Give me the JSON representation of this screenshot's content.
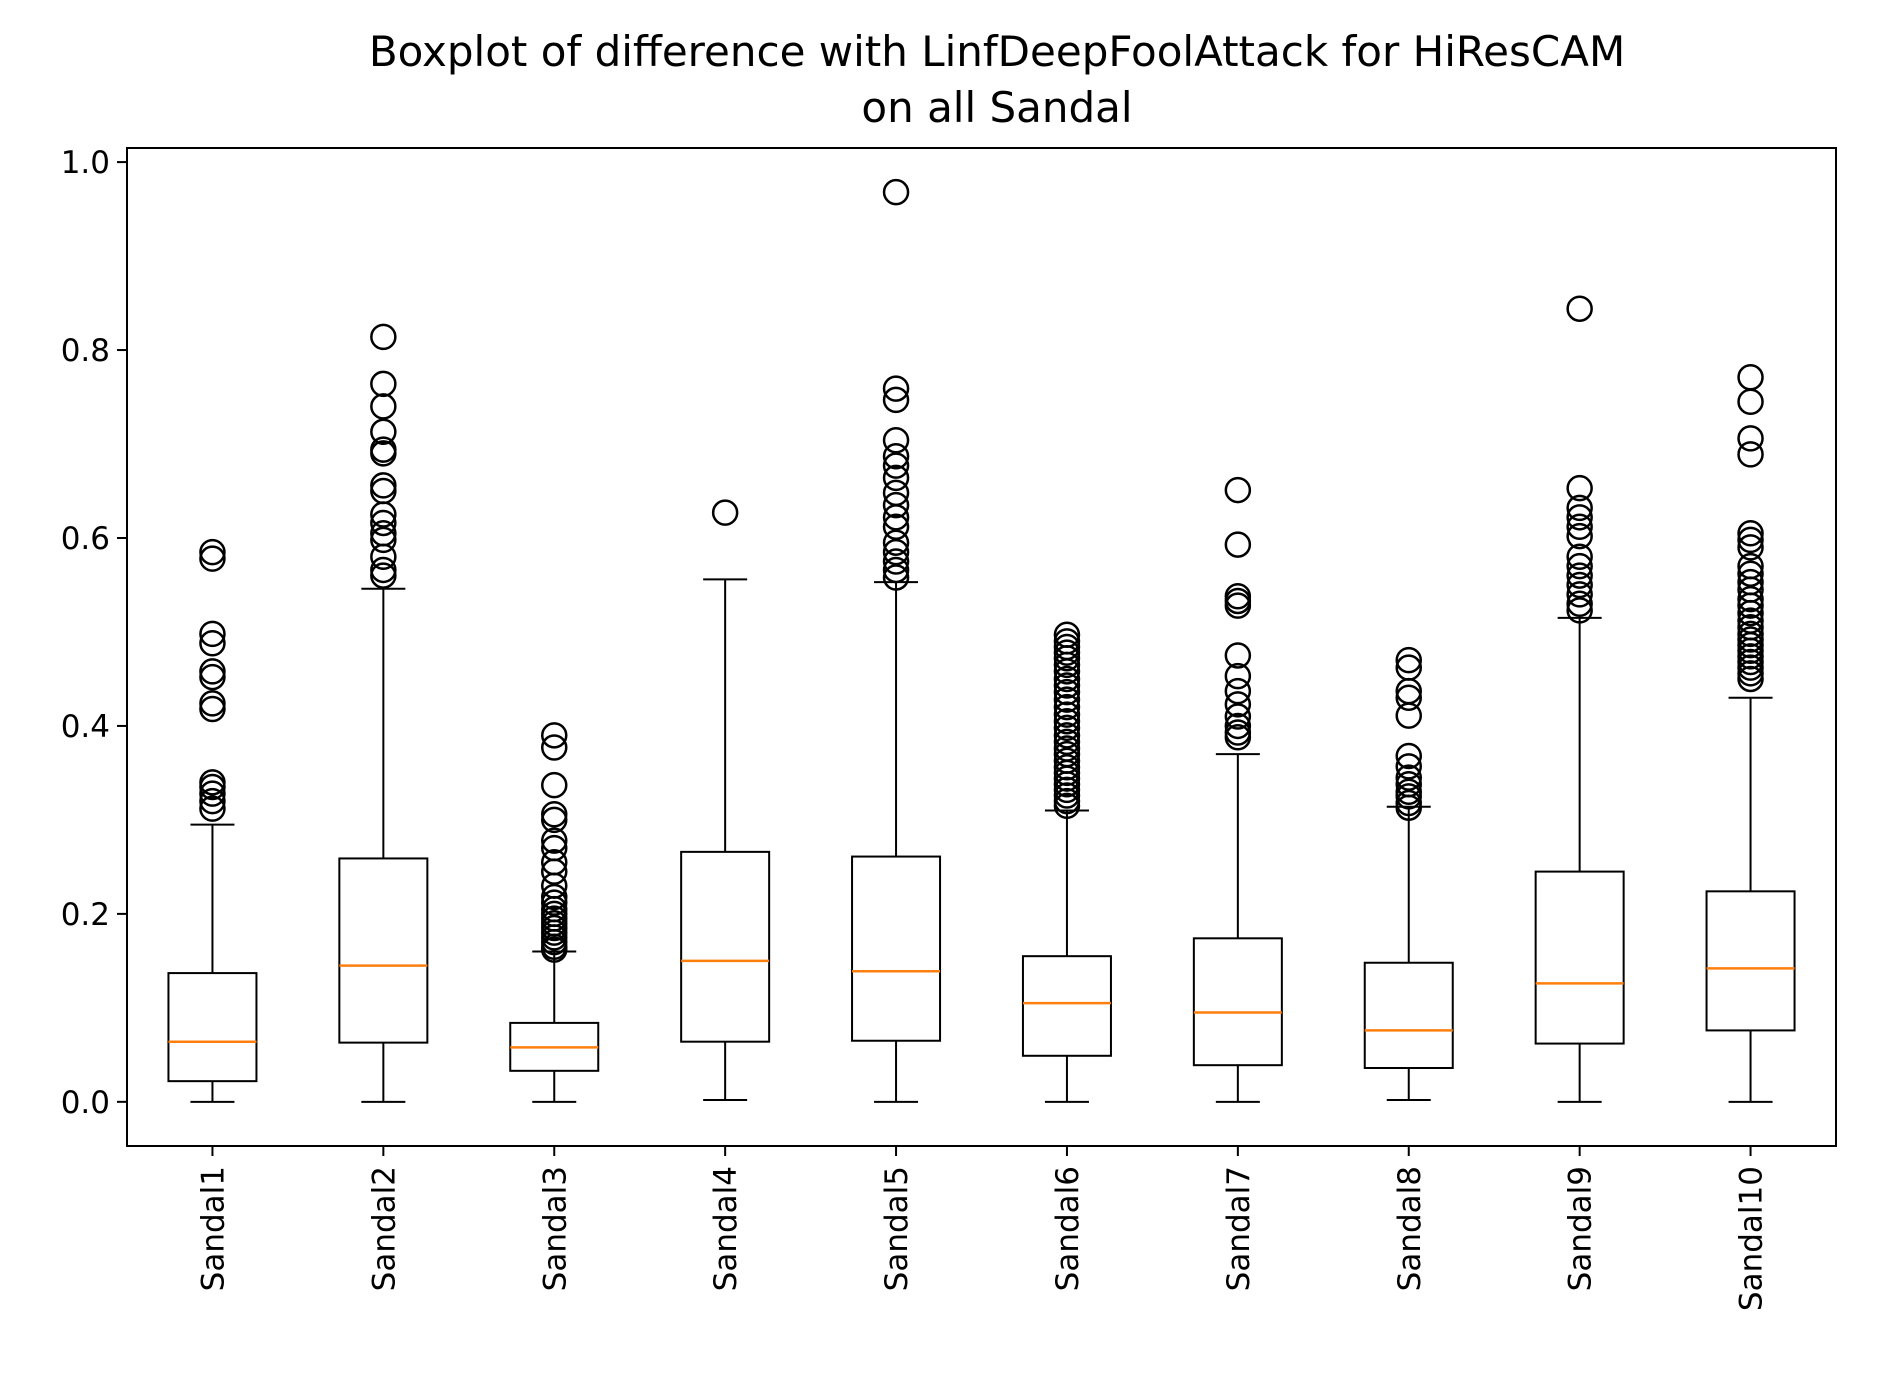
{
  "chart_data": {
    "type": "boxplot",
    "title": "Boxplot of difference with LinfDeepFoolAttack for HiResCAM",
    "subtitle": "on all Sandal",
    "xlabel": "",
    "ylabel": "",
    "ylim": [
      -0.047,
      1.015
    ],
    "yticks": [
      0.0,
      0.2,
      0.4,
      0.6,
      0.8,
      1.0
    ],
    "ytick_labels": [
      "0.0",
      "0.2",
      "0.4",
      "0.6",
      "0.8",
      "1.0"
    ],
    "categories": [
      "Sandal1",
      "Sandal2",
      "Sandal3",
      "Sandal4",
      "Sandal5",
      "Sandal6",
      "Sandal7",
      "Sandal8",
      "Sandal9",
      "Sandal10"
    ],
    "grid": false,
    "legend": "none",
    "colors": {
      "box": "#000000",
      "median": "#ff7f0e",
      "flier": "#000000"
    },
    "boxes": [
      {
        "name": "Sandal1",
        "whislo": 0.0,
        "q1": 0.022,
        "med": 0.064,
        "q3": 0.137,
        "whishi": 0.295,
        "fliers": [
          0.585,
          0.578,
          0.498,
          0.488,
          0.458,
          0.452,
          0.424,
          0.418,
          0.34,
          0.335,
          0.328,
          0.32,
          0.312
        ]
      },
      {
        "name": "Sandal2",
        "whislo": 0.0,
        "q1": 0.063,
        "med": 0.145,
        "q3": 0.259,
        "whishi": 0.546,
        "fliers": [
          0.814,
          0.764,
          0.74,
          0.713,
          0.694,
          0.69,
          0.656,
          0.65,
          0.625,
          0.616,
          0.605,
          0.598,
          0.58,
          0.566,
          0.56
        ]
      },
      {
        "name": "Sandal3",
        "whislo": 0.0,
        "q1": 0.033,
        "med": 0.058,
        "q3": 0.084,
        "whishi": 0.16,
        "fliers": [
          0.39,
          0.377,
          0.337,
          0.306,
          0.3,
          0.278,
          0.27,
          0.255,
          0.245,
          0.23,
          0.218,
          0.212,
          0.205,
          0.2,
          0.195,
          0.19,
          0.185,
          0.18,
          0.175,
          0.17,
          0.165,
          0.162
        ]
      },
      {
        "name": "Sandal4",
        "whislo": 0.002,
        "q1": 0.064,
        "med": 0.15,
        "q3": 0.266,
        "whishi": 0.556,
        "fliers": [
          0.627
        ]
      },
      {
        "name": "Sandal5",
        "whislo": 0.0,
        "q1": 0.065,
        "med": 0.139,
        "q3": 0.261,
        "whishi": 0.553,
        "fliers": [
          0.968,
          0.759,
          0.747,
          0.704,
          0.687,
          0.677,
          0.664,
          0.648,
          0.635,
          0.622,
          0.612,
          0.595,
          0.585,
          0.575,
          0.566,
          0.558
        ]
      },
      {
        "name": "Sandal6",
        "whislo": 0.0,
        "q1": 0.049,
        "med": 0.105,
        "q3": 0.155,
        "whishi": 0.31,
        "fliers": [
          0.497,
          0.49,
          0.484,
          0.478,
          0.472,
          0.465,
          0.458,
          0.45,
          0.443,
          0.436,
          0.428,
          0.42,
          0.412,
          0.405,
          0.398,
          0.39,
          0.383,
          0.376,
          0.37,
          0.363,
          0.356,
          0.35,
          0.344,
          0.338,
          0.332,
          0.326,
          0.32,
          0.315
        ]
      },
      {
        "name": "Sandal7",
        "whislo": 0.0,
        "q1": 0.039,
        "med": 0.095,
        "q3": 0.174,
        "whishi": 0.37,
        "fliers": [
          0.651,
          0.593,
          0.538,
          0.533,
          0.528,
          0.475,
          0.453,
          0.437,
          0.423,
          0.41,
          0.4,
          0.393,
          0.388
        ]
      },
      {
        "name": "Sandal8",
        "whislo": 0.002,
        "q1": 0.036,
        "med": 0.076,
        "q3": 0.148,
        "whishi": 0.314,
        "fliers": [
          0.47,
          0.462,
          0.437,
          0.43,
          0.411,
          0.368,
          0.357,
          0.345,
          0.338,
          0.33,
          0.325,
          0.318,
          0.313
        ]
      },
      {
        "name": "Sandal9",
        "whislo": 0.0,
        "q1": 0.062,
        "med": 0.126,
        "q3": 0.245,
        "whishi": 0.515,
        "fliers": [
          0.844,
          0.653,
          0.632,
          0.622,
          0.612,
          0.602,
          0.58,
          0.57,
          0.56,
          0.55,
          0.54,
          0.53,
          0.523
        ]
      },
      {
        "name": "Sandal10",
        "whislo": 0.0,
        "q1": 0.076,
        "med": 0.142,
        "q3": 0.224,
        "whishi": 0.43,
        "fliers": [
          0.771,
          0.745,
          0.706,
          0.689,
          0.605,
          0.598,
          0.59,
          0.57,
          0.562,
          0.553,
          0.545,
          0.535,
          0.528,
          0.52,
          0.512,
          0.505,
          0.498,
          0.492,
          0.486,
          0.48,
          0.474,
          0.468,
          0.462,
          0.456,
          0.45
        ]
      }
    ]
  }
}
